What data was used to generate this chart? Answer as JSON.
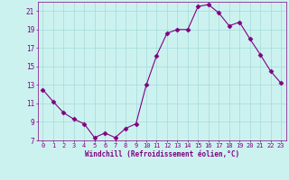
{
  "x": [
    0,
    1,
    2,
    3,
    4,
    5,
    6,
    7,
    8,
    9,
    10,
    11,
    12,
    13,
    14,
    15,
    16,
    17,
    18,
    19,
    20,
    21,
    22,
    23
  ],
  "y": [
    12.5,
    11.2,
    10.0,
    9.3,
    8.8,
    7.3,
    7.8,
    7.3,
    8.3,
    8.8,
    13.0,
    16.2,
    18.6,
    19.0,
    19.0,
    21.5,
    21.7,
    20.8,
    19.4,
    19.8,
    18.0,
    16.3,
    14.5,
    13.2
  ],
  "line_color": "#800080",
  "marker": "D",
  "marker_size": 2.5,
  "bg_color": "#ccf2f0",
  "grid_color": "#aadddd",
  "xlabel": "Windchill (Refroidissement éolien,°C)",
  "xlabel_color": "#800080",
  "tick_color": "#800080",
  "ylim": [
    7,
    22
  ],
  "xlim": [
    -0.5,
    23.5
  ],
  "yticks": [
    7,
    9,
    11,
    13,
    15,
    17,
    19,
    21
  ],
  "xticks": [
    0,
    1,
    2,
    3,
    4,
    5,
    6,
    7,
    8,
    9,
    10,
    11,
    12,
    13,
    14,
    15,
    16,
    17,
    18,
    19,
    20,
    21,
    22,
    23
  ]
}
